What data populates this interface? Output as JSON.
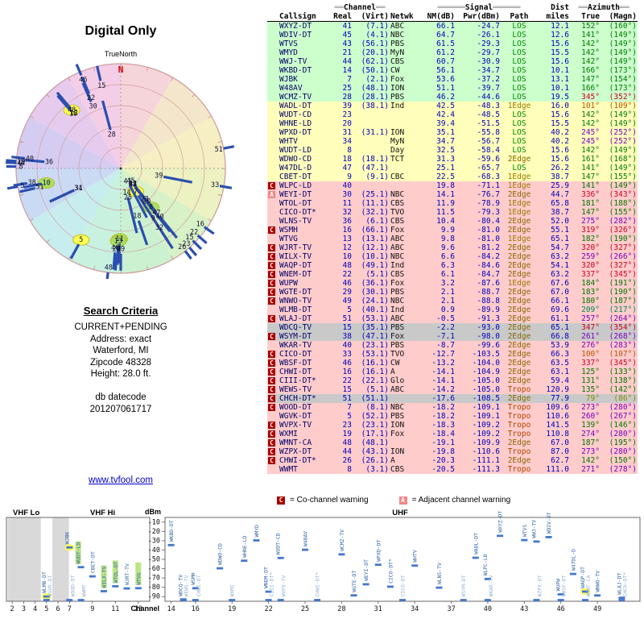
{
  "page": {
    "title": "Digital Only"
  },
  "radar": {
    "north_label": "N",
    "true_north_label": "TrueNorth",
    "wheel_colors": [
      "#f6d5da",
      "#f4e6cb",
      "#f5efc3",
      "#ecf2c2",
      "#d8f1c7",
      "#ccf1d1",
      "#c8f1e0",
      "#c8edee",
      "#cbdaf4",
      "#d5ccf1",
      "#e7cbef",
      "#f4cee7"
    ],
    "ring_color": "#cf9f9f",
    "spoke_color": "#2b4fae"
  },
  "search_criteria": {
    "heading": "Search Criteria",
    "lines": [
      "CURRENT+PENDING",
      "Address: exact",
      "Waterford, MI",
      "Zipcode 48328",
      "Height: 28.0 ft."
    ]
  },
  "datecode": {
    "label": "db datecode",
    "value": "201207061717"
  },
  "link": {
    "text": "www.tvfool.com"
  },
  "legend": {
    "co_symbol": "C",
    "co_text": "= Co-channel warning",
    "adj_symbol": "A",
    "adj_text": "= Adjacent channel warning"
  },
  "table": {
    "deco": {
      "eq2": "══",
      "eq6": "══════"
    },
    "group_headers": {
      "channel": "Channel",
      "signal": "Signal",
      "dist": "Dist",
      "azimuth": "Azimuth"
    },
    "col_headers": {
      "callsign": "Callsign",
      "real": "Real",
      "virt": "(Virt)",
      "netwk": "Netwk",
      "nm": "NM(dB)",
      "pwr": "Pwr(dBm)",
      "path": "Path",
      "miles": "miles",
      "true": "True",
      "magn": "(Magn)"
    }
  },
  "palette": {
    "tier_bg": {
      "g": "#ccffcc",
      "y": "#ffffbb",
      "p": "#ffcccc",
      "x": "#c9c9c9"
    },
    "az": {
      "green": "#007700",
      "red": "#cc0022",
      "purple": "#7700bb",
      "orange": "#bb5500",
      "teal": "#008855",
      "olive": "#888800"
    },
    "path": {
      "LOS": "#008800",
      "1Edge": "#997700",
      "2Edge": "#886600",
      "Tropo": "#b34700"
    },
    "warn": {
      "co": "#aa0000",
      "adj": "#ee8888"
    },
    "mark": "#4477cc",
    "label_strong": "#3366aa",
    "label_weak": "#93b3d6",
    "hl_y": "#ffff55",
    "hl_g": "#aade66"
  },
  "chart_data": {
    "type": "scatter",
    "title": "",
    "xlabel": "Channel",
    "ylabel": "dBm",
    "ylim": [
      -95,
      -5
    ],
    "y_ticks": [
      -10,
      -20,
      -30,
      -40,
      -50,
      -60,
      -70,
      -80,
      -90
    ],
    "band_labels": {
      "vhf_lo": "VHF Lo",
      "vhf_hi": "VHF Hi",
      "uhf": "UHF"
    },
    "vhf_ticks": [
      2,
      3,
      4,
      5,
      6,
      7,
      9,
      11,
      13
    ],
    "uhf_ticks": [
      14,
      16,
      19,
      22,
      25,
      28,
      31,
      34,
      37,
      40,
      43,
      46,
      49
    ],
    "stations": [
      {
        "cs": "WXYZ-DT",
        "real": 41,
        "virt": "(7.1)",
        "net": "ABC",
        "nm": 66.1,
        "pwr": -24.7,
        "path": "LOS",
        "mi": 12.1,
        "azt": "152°",
        "azm": "(160°)",
        "tier": "g",
        "azc": "green"
      },
      {
        "cs": "WDIV-DT",
        "real": 45,
        "virt": "(4.1)",
        "net": "NBC",
        "nm": 64.7,
        "pwr": -26.1,
        "path": "LOS",
        "mi": 12.6,
        "azt": "141°",
        "azm": "(149°)",
        "tier": "g",
        "azc": "green"
      },
      {
        "cs": "WTVS",
        "real": 43,
        "virt": "(56.1)",
        "net": "PBS",
        "nm": 61.5,
        "pwr": -29.3,
        "path": "LOS",
        "mi": 15.6,
        "azt": "142°",
        "azm": "(149°)",
        "tier": "g",
        "azc": "green"
      },
      {
        "cs": "WMYD",
        "real": 21,
        "virt": "(20.1)",
        "net": "MyN",
        "nm": 61.2,
        "pwr": -29.7,
        "path": "LOS",
        "mi": 15.5,
        "azt": "142°",
        "azm": "(149°)",
        "tier": "g",
        "azc": "green"
      },
      {
        "cs": "WWJ-TV",
        "real": 44,
        "virt": "(62.1)",
        "net": "CBS",
        "nm": 60.7,
        "pwr": -30.9,
        "path": "LOS",
        "mi": 15.6,
        "azt": "142°",
        "azm": "(149°)",
        "tier": "g",
        "azc": "green"
      },
      {
        "cs": "WKBD-DT",
        "real": 14,
        "virt": "(50.1)",
        "net": "CW",
        "nm": 56.1,
        "pwr": -34.7,
        "path": "LOS",
        "mi": 10.1,
        "azt": "166°",
        "azm": "(173°)",
        "tier": "g",
        "azc": "green"
      },
      {
        "cs": "WJBK",
        "real": 7,
        "virt": "(2.1)",
        "net": "Fox",
        "nm": 53.6,
        "pwr": -37.2,
        "path": "LOS",
        "mi": 13.1,
        "azt": "147°",
        "azm": "(154°)",
        "tier": "g",
        "azc": "green",
        "hl": "y"
      },
      {
        "cs": "W48AV",
        "real": 25,
        "virt": "(48.1)",
        "net": "ION",
        "nm": 51.1,
        "pwr": -39.7,
        "path": "LOS",
        "mi": 10.1,
        "azt": "166°",
        "azm": "(173°)",
        "tier": "g",
        "azc": "green"
      },
      {
        "cs": "WCMZ-TV",
        "real": 28,
        "virt": "(28.1)",
        "net": "PBS",
        "nm": 46.2,
        "pwr": -44.6,
        "path": "LOS",
        "mi": 19.5,
        "azt": "345°",
        "azm": "(352°)",
        "tier": "g",
        "azc": "red"
      },
      {
        "cs": "WADL-DT",
        "real": 39,
        "virt": "(38.1)",
        "net": "Ind",
        "nm": 42.5,
        "pwr": -48.3,
        "path": "1Edge",
        "mi": 16.0,
        "azt": "101°",
        "azm": "(109°)",
        "tier": "y",
        "azc": "orange"
      },
      {
        "cs": "WUDT-CD",
        "real": 23,
        "virt": "",
        "net": "",
        "nm": 42.4,
        "pwr": -48.5,
        "path": "LOS",
        "mi": 15.6,
        "azt": "142°",
        "azm": "(149°)",
        "tier": "y",
        "azc": "green"
      },
      {
        "cs": "WHNE-LD",
        "real": 20,
        "virt": "",
        "net": "",
        "nm": 39.4,
        "pwr": -51.5,
        "path": "LOS",
        "mi": 15.5,
        "azt": "142°",
        "azm": "(149°)",
        "tier": "y",
        "azc": "green"
      },
      {
        "cs": "WPXD-DT",
        "real": 31,
        "virt": "(31.1)",
        "net": "ION",
        "nm": 35.1,
        "pwr": -55.8,
        "path": "LOS",
        "mi": 40.2,
        "azt": "245°",
        "azm": "(252°)",
        "tier": "y",
        "azc": "purple"
      },
      {
        "cs": "WHTV",
        "real": 34,
        "virt": "",
        "net": "MyN",
        "nm": 34.7,
        "pwr": -56.7,
        "path": "LOS",
        "mi": 40.2,
        "azt": "245°",
        "azm": "(252°)",
        "tier": "y",
        "azc": "purple"
      },
      {
        "cs": "WUDT-LD",
        "real": 8,
        "virt": "",
        "net": "Day",
        "nm": 32.5,
        "pwr": -58.4,
        "path": "LOS",
        "mi": 15.6,
        "azt": "142°",
        "azm": "(149°)",
        "tier": "y",
        "azc": "green",
        "hl": "g"
      },
      {
        "cs": "WDWO-CD",
        "real": 18,
        "virt": "(18.1)",
        "net": "TCT",
        "nm": 31.3,
        "pwr": -59.6,
        "path": "2Edge",
        "mi": 15.6,
        "azt": "161°",
        "azm": "(168°)",
        "tier": "y",
        "azc": "green"
      },
      {
        "cs": "W47DL-D",
        "real": 47,
        "virt": "(47.1)",
        "net": "",
        "nm": 25.1,
        "pwr": -65.7,
        "path": "LOS",
        "mi": 26.2,
        "azt": "141°",
        "azm": "(149°)",
        "tier": "y",
        "azc": "green"
      },
      {
        "cs": "CBET-DT",
        "real": 9,
        "virt": "(9.1)",
        "net": "CBC",
        "nm": 22.5,
        "pwr": -68.3,
        "path": "1Edge",
        "mi": 38.7,
        "azt": "147°",
        "azm": "(155°)",
        "tier": "y",
        "azc": "green"
      },
      {
        "cs": "WLPC-LD",
        "real": 40,
        "virt": "",
        "net": "",
        "nm": 19.8,
        "pwr": -71.1,
        "path": "1Edge",
        "mi": 25.9,
        "azt": "141°",
        "azm": "(149°)",
        "tier": "p",
        "warn": "C",
        "azc": "green"
      },
      {
        "cs": "WEYI-DT",
        "real": 30,
        "virt": "(25.1)",
        "net": "NBC",
        "nm": 14.1,
        "pwr": -76.7,
        "path": "2Edge",
        "mi": 44.7,
        "azt": "336°",
        "azm": "(343°)",
        "tier": "p",
        "warn": "A",
        "azc": "red"
      },
      {
        "cs": "WTOL-DT",
        "real": 11,
        "virt": "(11.1)",
        "net": "CBS",
        "nm": 11.9,
        "pwr": -78.9,
        "path": "1Edge",
        "mi": 65.8,
        "azt": "181°",
        "azm": "(188°)",
        "tier": "p",
        "azc": "green",
        "hl": "g"
      },
      {
        "cs": "CICO-DT*",
        "real": 32,
        "virt": "(32.1)",
        "net": "TVO",
        "nm": 11.5,
        "pwr": -79.3,
        "path": "1Edge",
        "mi": 38.7,
        "azt": "147°",
        "azm": "(155°)",
        "tier": "p",
        "azc": "green"
      },
      {
        "cs": "WLNS-TV",
        "real": 36,
        "virt": "(6.1)",
        "net": "CBS",
        "nm": 10.4,
        "pwr": -80.4,
        "path": "2Edge",
        "mi": 52.0,
        "azt": "275°",
        "azm": "(282°)",
        "tier": "p",
        "azc": "purple"
      },
      {
        "cs": "WSMH",
        "real": 16,
        "virt": "(66.1)",
        "net": "Fox",
        "nm": 9.9,
        "pwr": -81.0,
        "path": "2Edge",
        "mi": 55.1,
        "azt": "319°",
        "azm": "(326°)",
        "tier": "p",
        "warn": "C",
        "azc": "red"
      },
      {
        "cs": "WTVG",
        "real": 13,
        "virt": "(13.1)",
        "net": "ABC",
        "nm": 9.8,
        "pwr": -81.0,
        "path": "1Edge",
        "mi": 65.1,
        "azt": "182°",
        "azm": "(190°)",
        "tier": "p",
        "azc": "green",
        "hl": "g"
      },
      {
        "cs": "WJRT-TV",
        "real": 12,
        "virt": "(12.1)",
        "net": "ABC",
        "nm": 9.6,
        "pwr": -81.2,
        "path": "2Edge",
        "mi": 54.7,
        "azt": "320°",
        "azm": "(327°)",
        "tier": "p",
        "warn": "C",
        "azc": "red"
      },
      {
        "cs": "WILX-TV",
        "real": 10,
        "virt": "(10.1)",
        "net": "NBC",
        "nm": 6.6,
        "pwr": -84.2,
        "path": "2Edge",
        "mi": 63.2,
        "azt": "259°",
        "azm": "(266°)",
        "tier": "p",
        "warn": "C",
        "azc": "purple",
        "hl": "g"
      },
      {
        "cs": "WAQP-DT",
        "real": 48,
        "virt": "(49.1)",
        "net": "Ind",
        "nm": 6.3,
        "pwr": -84.6,
        "path": "2Edge",
        "mi": 54.1,
        "azt": "320°",
        "azm": "(327°)",
        "tier": "p",
        "warn": "C",
        "azc": "red",
        "hl": "y"
      },
      {
        "cs": "WNEM-DT",
        "real": 22,
        "virt": "(5.1)",
        "net": "CBS",
        "nm": 6.1,
        "pwr": -84.7,
        "path": "2Edge",
        "mi": 63.2,
        "azt": "337°",
        "azm": "(345°)",
        "tier": "p",
        "warn": "C",
        "azc": "red"
      },
      {
        "cs": "WUPW",
        "real": 46,
        "virt": "(36.1)",
        "net": "Fox",
        "nm": 3.2,
        "pwr": -87.6,
        "path": "1Edge",
        "mi": 67.6,
        "azt": "184°",
        "azm": "(191°)",
        "tier": "p",
        "warn": "C",
        "azc": "green"
      },
      {
        "cs": "WGTE-DT",
        "real": 29,
        "virt": "(30.1)",
        "net": "PBS",
        "nm": 2.1,
        "pwr": -88.7,
        "path": "2Edge",
        "mi": 67.0,
        "azt": "183°",
        "azm": "(190°)",
        "tier": "p",
        "warn": "C",
        "azc": "green"
      },
      {
        "cs": "WNWO-TV",
        "real": 49,
        "virt": "(24.1)",
        "net": "NBC",
        "nm": 2.1,
        "pwr": -88.8,
        "path": "2Edge",
        "mi": 66.1,
        "azt": "180°",
        "azm": "(187°)",
        "tier": "p",
        "warn": "C",
        "azc": "green"
      },
      {
        "cs": "WLMB-DT",
        "real": 5,
        "virt": "(40.1)",
        "net": "Ind",
        "nm": 0.9,
        "pwr": -89.9,
        "path": "2Edge",
        "mi": 69.6,
        "azt": "209°",
        "azm": "(217°)",
        "tier": "p",
        "azc": "teal",
        "hl": "y"
      },
      {
        "cs": "WLAJ-DT",
        "real": 51,
        "virt": "(53.1)",
        "net": "ABC",
        "nm": -0.5,
        "pwr": -91.3,
        "path": "2Edge",
        "mi": 61.1,
        "azt": "257°",
        "azm": "(264°)",
        "tier": "p",
        "warn": "C",
        "azc": "purple"
      },
      {
        "cs": "WDCQ-TV",
        "real": 15,
        "virt": "(35.1)",
        "net": "PBS",
        "nm": -2.2,
        "pwr": -93.0,
        "path": "2Edge",
        "mi": 65.1,
        "azt": "347°",
        "azm": "(354°)",
        "tier": "x",
        "azc": "red"
      },
      {
        "cs": "WSYM-DT",
        "real": 38,
        "virt": "(47.1)",
        "net": "Fox",
        "nm": -7.1,
        "pwr": -98.0,
        "path": "2Edge",
        "mi": 66.8,
        "azt": "261°",
        "azm": "(268°)",
        "tier": "x",
        "warn": "C",
        "azc": "purple"
      },
      {
        "cs": "WKAR-TV",
        "real": 40,
        "virt": "(23.1)",
        "net": "PBS",
        "nm": -8.7,
        "pwr": -99.6,
        "path": "2Edge",
        "mi": 53.9,
        "azt": "276°",
        "azm": "(283°)",
        "tier": "p",
        "azc": "purple"
      },
      {
        "cs": "CICO-DT",
        "real": 33,
        "virt": "(53.1)",
        "net": "TVO",
        "nm": -12.7,
        "pwr": -103.5,
        "path": "2Edge",
        "mi": 66.3,
        "azt": "100°",
        "azm": "(107°)",
        "tier": "p",
        "warn": "C",
        "azc": "orange"
      },
      {
        "cs": "WBSF-DT",
        "real": 46,
        "virt": "(16.1)",
        "net": "CW",
        "nm": -13.2,
        "pwr": -104.0,
        "path": "2Edge",
        "mi": 63.5,
        "azt": "337°",
        "azm": "(345°)",
        "tier": "p",
        "warn": "C",
        "azc": "red"
      },
      {
        "cs": "CHWI-DT",
        "real": 16,
        "virt": "(16.1)",
        "net": "A",
        "nm": -14.1,
        "pwr": -104.9,
        "path": "2Edge",
        "mi": 63.1,
        "azt": "125°",
        "azm": "(133°)",
        "tier": "p",
        "warn": "C",
        "azc": "green"
      },
      {
        "cs": "CIII-DT*",
        "real": 22,
        "virt": "(22.1)",
        "net": "Glo",
        "nm": -14.1,
        "pwr": -105.0,
        "path": "2Edge",
        "mi": 59.4,
        "azt": "131°",
        "azm": "(138°)",
        "tier": "p",
        "warn": "C",
        "azc": "green"
      },
      {
        "cs": "WEWS-TV",
        "real": 15,
        "virt": "(5.1)",
        "net": "ABC",
        "nm": -14.2,
        "pwr": -105.0,
        "path": "Tropo",
        "mi": 120.9,
        "azt": "135°",
        "azm": "(142°)",
        "tier": "p",
        "warn": "C",
        "azc": "green"
      },
      {
        "cs": "CHCH-DT*",
        "real": 51,
        "virt": "(51.1)",
        "net": "",
        "nm": -17.6,
        "pwr": -108.5,
        "path": "2Edge",
        "mi": 77.9,
        "azt": "79°",
        "azm": "(86°)",
        "tier": "x",
        "warn": "C",
        "azc": "olive"
      },
      {
        "cs": "WOOD-DT",
        "real": 7,
        "virt": "(8.1)",
        "net": "NBC",
        "nm": -18.2,
        "pwr": -109.1,
        "path": "Tropo",
        "mi": 109.6,
        "azt": "273°",
        "azm": "(280°)",
        "tier": "p",
        "warn": "C",
        "azc": "purple"
      },
      {
        "cs": "WGVK-DT",
        "real": 5,
        "virt": "(52.1)",
        "net": "PBS",
        "nm": -18.2,
        "pwr": -109.1,
        "path": "Tropo",
        "mi": 110.6,
        "azt": "260°",
        "azm": "(267°)",
        "tier": "p",
        "azc": "purple"
      },
      {
        "cs": "WVPX-TV",
        "real": 23,
        "virt": "(23.1)",
        "net": "ION",
        "nm": -18.3,
        "pwr": -109.2,
        "path": "Tropo",
        "mi": 141.5,
        "azt": "139°",
        "azm": "(146°)",
        "tier": "p",
        "warn": "C",
        "azc": "green"
      },
      {
        "cs": "WXMI",
        "real": 19,
        "virt": "(17.1)",
        "net": "Fox",
        "nm": -18.4,
        "pwr": -109.2,
        "path": "Tropo",
        "mi": 110.8,
        "azt": "274°",
        "azm": "(280°)",
        "tier": "p",
        "warn": "C",
        "azc": "purple"
      },
      {
        "cs": "WMNT-CA",
        "real": 48,
        "virt": "(48.1)",
        "net": "",
        "nm": -19.1,
        "pwr": -109.9,
        "path": "2Edge",
        "mi": 67.0,
        "azt": "187°",
        "azm": "(195°)",
        "tier": "p",
        "warn": "C",
        "azc": "green"
      },
      {
        "cs": "WZPX-DT",
        "real": 44,
        "virt": "(43.1)",
        "net": "ION",
        "nm": -19.8,
        "pwr": -110.6,
        "path": "Tropo",
        "mi": 87.0,
        "azt": "273°",
        "azm": "(280°)",
        "tier": "p",
        "warn": "C",
        "azc": "purple"
      },
      {
        "cs": "CHWI-DT*",
        "real": 26,
        "virt": "(26.1)",
        "net": "A",
        "nm": -20.3,
        "pwr": -111.1,
        "path": "2Edge",
        "mi": 62.7,
        "azt": "142°",
        "azm": "(150°)",
        "tier": "p",
        "warn": "C",
        "azc": "green"
      },
      {
        "cs": "WWMT",
        "real": 8,
        "virt": "(3.1)",
        "net": "CBS",
        "nm": -20.5,
        "pwr": -111.3,
        "path": "Tropo",
        "mi": 111.0,
        "azt": "271°",
        "azm": "(278°)",
        "tier": "p",
        "azc": "purple"
      }
    ]
  }
}
